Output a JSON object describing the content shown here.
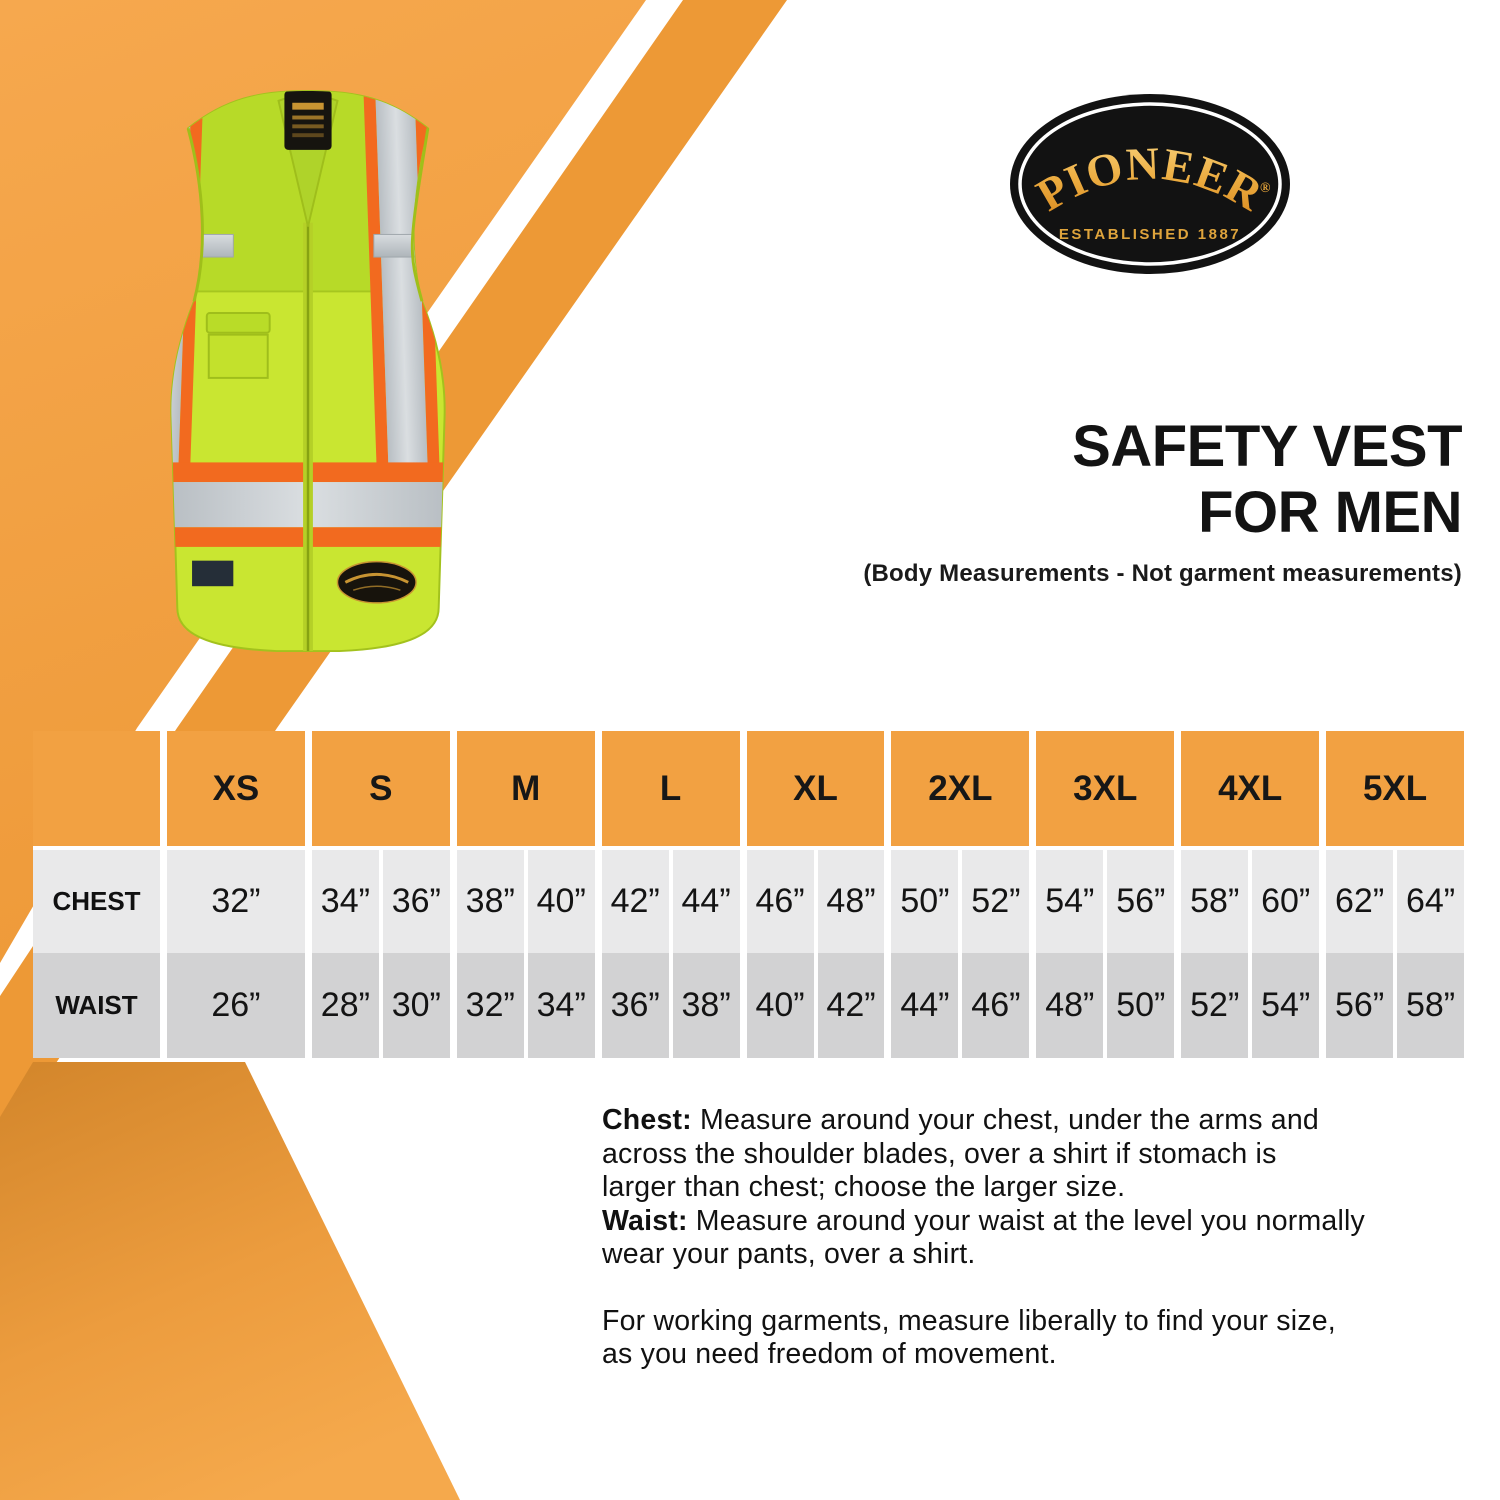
{
  "brand": {
    "name": "PIONEER",
    "registered": "®",
    "established": "ESTABLISHED 1887"
  },
  "title": {
    "line1": "SAFETY VEST",
    "line2": "FOR MEN",
    "subtitle": "(Body Measurements - Not garment measurements)"
  },
  "size_chart": {
    "sizes": [
      "XS",
      "S",
      "M",
      "L",
      "XL",
      "2XL",
      "3XL",
      "4XL",
      "5XL"
    ],
    "rows": [
      {
        "label": "CHEST",
        "values": [
          [
            "32”"
          ],
          [
            "34”",
            "36”"
          ],
          [
            "38”",
            "40”"
          ],
          [
            "42”",
            "44”"
          ],
          [
            "46”",
            "48”"
          ],
          [
            "50”",
            "52”"
          ],
          [
            "54”",
            "56”"
          ],
          [
            "58”",
            "60”"
          ],
          [
            "62”",
            "64”"
          ]
        ]
      },
      {
        "label": "WAIST",
        "values": [
          [
            "26”"
          ],
          [
            "28”",
            "30”"
          ],
          [
            "32”",
            "34”"
          ],
          [
            "36”",
            "38”"
          ],
          [
            "40”",
            "42”"
          ],
          [
            "44”",
            "46”"
          ],
          [
            "48”",
            "50”"
          ],
          [
            "52”",
            "54”"
          ],
          [
            "56”",
            "58”"
          ]
        ]
      }
    ]
  },
  "instructions": {
    "blocks": [
      {
        "lines": [
          [
            {
              "b": true,
              "t": "Chest: "
            },
            {
              "b": false,
              "t": "Measure around your chest, under the arms and"
            }
          ],
          [
            {
              "b": false,
              "t": "across the shoulder blades, over a shirt if stomach is"
            }
          ],
          [
            {
              "b": false,
              "t": "larger than chest; choose the larger size."
            }
          ],
          [
            {
              "b": true,
              "t": "Waist: "
            },
            {
              "b": false,
              "t": "Measure around your waist at the level you normally"
            }
          ],
          [
            {
              "b": false,
              "t": "wear your pants, over a shirt."
            }
          ]
        ]
      },
      {
        "lines": [
          [
            {
              "b": false,
              "t": "For working garments, measure liberally to find your size,"
            }
          ],
          [
            {
              "b": false,
              "t": "as you need freedom of movement."
            }
          ]
        ]
      }
    ]
  },
  "colors": {
    "stripe_orange_light": "#F6A84E",
    "stripe_orange_dark": "#ED9936",
    "wedge_orange_top": "#D4872C",
    "wedge_orange_bottom": "#F5A94C",
    "table_header_orange": "#F2A142",
    "row_chest_gray": "#E9E9EA",
    "row_waist_gray": "#D2D2D3",
    "logo_gold": "#E8A63B",
    "vest_green": "#C9E631",
    "reflective_orange": "#F26A1F",
    "reflective_silver": "#C9CED2",
    "text_black": "#131313"
  }
}
